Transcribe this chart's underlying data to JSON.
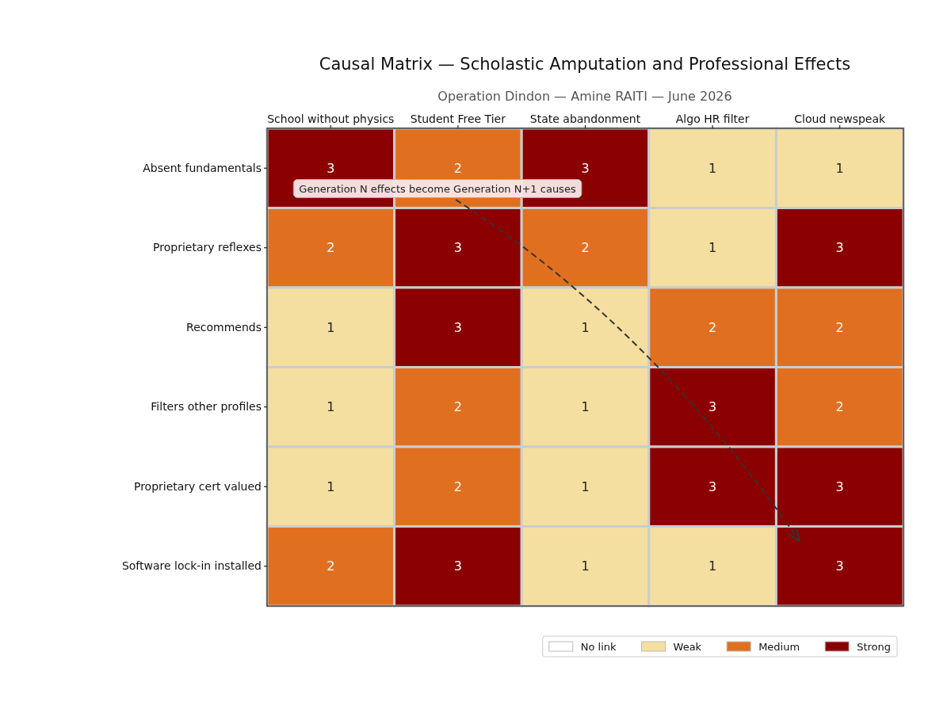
{
  "chart_data": {
    "type": "heatmap",
    "title": "Causal Matrix — Scholastic Amputation and Professional Effects",
    "subtitle": "Operation Dindon — Amine RAITI — June 2026",
    "categories": [
      "School without physics",
      "Student Free Tier",
      "State abandonment",
      "Algo HR filter",
      "Cloud newspeak"
    ],
    "y_categories": [
      "Absent fundamentals",
      "Proprietary reflexes",
      "Recommends",
      "Filters other profiles",
      "Proprietary cert valued",
      "Software lock-in installed"
    ],
    "cells": [
      [
        3,
        2,
        3,
        1,
        1
      ],
      [
        2,
        3,
        2,
        1,
        3
      ],
      [
        1,
        3,
        1,
        2,
        2
      ],
      [
        1,
        2,
        1,
        3,
        2
      ],
      [
        1,
        2,
        1,
        3,
        3
      ],
      [
        2,
        3,
        1,
        1,
        3
      ]
    ],
    "colors": [
      "#ffffff",
      "#f5dfa0",
      "#e07020",
      "#8b0000"
    ],
    "data_labels": true,
    "annotations": [
      "Generation N effects become Generation N+1 causes",
      "No link",
      "Weak",
      "Medium",
      "Strong"
    ]
  }
}
